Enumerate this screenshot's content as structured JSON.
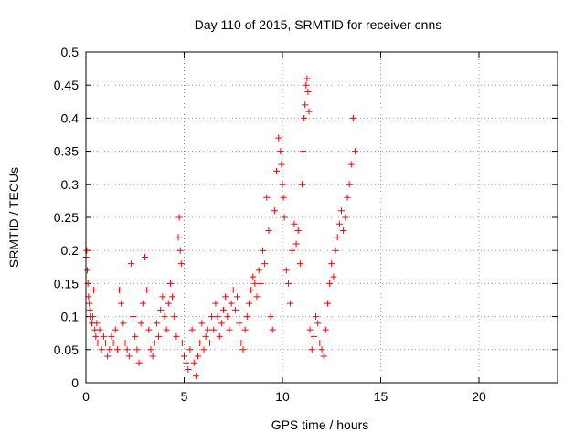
{
  "chart_data": {
    "type": "scatter",
    "title": "Day 110 of 2015, SRMTID for receiver cnns",
    "xlabel": "GPS time / hours",
    "ylabel": "SRMTID / TECUs",
    "xlim": [
      0,
      24
    ],
    "ylim": [
      0,
      0.5
    ],
    "xticks": [
      0,
      5,
      10,
      15,
      20
    ],
    "xtick_labels": [
      "0",
      "5",
      "10",
      "15",
      "20"
    ],
    "yticks": [
      0,
      0.05,
      0.1,
      0.15,
      0.2,
      0.25,
      0.3,
      0.35,
      0.4,
      0.45,
      0.5
    ],
    "ytick_labels": [
      "0",
      "0.05",
      "0.1",
      "0.15",
      "0.2",
      "0.25",
      "0.3",
      "0.35",
      "0.4",
      "0.45",
      "0.5"
    ],
    "grid": true,
    "marker": "+",
    "series": [
      {
        "name": "SRMTID",
        "color": "#ff0000",
        "x": [
          0.0,
          0.04,
          0.07,
          0.1,
          0.13,
          0.17,
          0.2,
          0.25,
          0.3,
          0.35,
          0.4,
          0.45,
          0.5,
          0.55,
          0.6,
          0.7,
          0.8,
          0.9,
          1.0,
          1.1,
          1.2,
          1.3,
          1.4,
          1.5,
          1.6,
          1.7,
          1.8,
          1.9,
          2.0,
          2.1,
          2.2,
          2.3,
          2.4,
          2.5,
          2.6,
          2.7,
          2.8,
          2.9,
          3.0,
          3.1,
          3.2,
          3.3,
          3.4,
          3.5,
          3.6,
          3.7,
          3.8,
          3.9,
          4.0,
          4.1,
          4.2,
          4.3,
          4.4,
          4.5,
          4.6,
          4.7,
          4.75,
          4.8,
          4.85,
          4.9,
          5.0,
          5.1,
          5.2,
          5.3,
          5.4,
          5.5,
          5.6,
          5.7,
          5.8,
          5.9,
          6.0,
          6.1,
          6.2,
          6.3,
          6.4,
          6.5,
          6.6,
          6.7,
          6.8,
          6.9,
          7.0,
          7.1,
          7.2,
          7.3,
          7.4,
          7.5,
          7.6,
          7.7,
          7.8,
          7.9,
          8.0,
          8.1,
          8.2,
          8.3,
          8.4,
          8.5,
          8.6,
          8.7,
          8.8,
          8.9,
          9.0,
          9.1,
          9.2,
          9.3,
          9.4,
          9.5,
          9.6,
          9.7,
          9.8,
          9.9,
          9.95,
          10.0,
          10.05,
          10.1,
          10.2,
          10.3,
          10.4,
          10.5,
          10.6,
          10.7,
          10.8,
          10.9,
          11.0,
          11.05,
          11.1,
          11.15,
          11.2,
          11.25,
          11.3,
          11.35,
          11.4,
          11.5,
          11.6,
          11.7,
          11.8,
          11.9,
          12.0,
          12.1,
          12.2,
          12.3,
          12.4,
          12.5,
          12.6,
          12.7,
          12.8,
          12.9,
          13.0,
          13.1,
          13.2,
          13.3,
          13.4,
          13.5,
          13.6,
          13.7
        ],
        "y": [
          0.19,
          0.2,
          0.17,
          0.15,
          0.13,
          0.12,
          0.11,
          0.1,
          0.09,
          0.1,
          0.14,
          0.08,
          0.07,
          0.09,
          0.06,
          0.08,
          0.05,
          0.07,
          0.06,
          0.04,
          0.05,
          0.07,
          0.06,
          0.08,
          0.05,
          0.14,
          0.12,
          0.09,
          0.06,
          0.05,
          0.04,
          0.18,
          0.1,
          0.07,
          0.05,
          0.03,
          0.09,
          0.12,
          0.19,
          0.14,
          0.08,
          0.05,
          0.04,
          0.06,
          0.09,
          0.07,
          0.11,
          0.13,
          0.1,
          0.08,
          0.12,
          0.15,
          0.13,
          0.1,
          0.07,
          0.22,
          0.25,
          0.2,
          0.18,
          0.06,
          0.04,
          0.03,
          0.02,
          0.05,
          0.08,
          0.03,
          0.01,
          0.04,
          0.06,
          0.09,
          0.05,
          0.07,
          0.08,
          0.06,
          0.1,
          0.08,
          0.12,
          0.1,
          0.07,
          0.09,
          0.11,
          0.13,
          0.1,
          0.08,
          0.12,
          0.14,
          0.11,
          0.13,
          0.09,
          0.06,
          0.05,
          0.08,
          0.1,
          0.12,
          0.14,
          0.16,
          0.15,
          0.13,
          0.17,
          0.15,
          0.2,
          0.18,
          0.28,
          0.23,
          0.1,
          0.08,
          0.26,
          0.32,
          0.37,
          0.35,
          0.33,
          0.3,
          0.28,
          0.25,
          0.17,
          0.15,
          0.12,
          0.2,
          0.24,
          0.21,
          0.23,
          0.18,
          0.3,
          0.35,
          0.4,
          0.42,
          0.45,
          0.46,
          0.44,
          0.41,
          0.08,
          0.05,
          0.07,
          0.1,
          0.09,
          0.06,
          0.05,
          0.04,
          0.08,
          0.12,
          0.15,
          0.18,
          0.16,
          0.2,
          0.22,
          0.24,
          0.26,
          0.23,
          0.25,
          0.28,
          0.3,
          0.33,
          0.4,
          0.35
        ]
      }
    ]
  }
}
